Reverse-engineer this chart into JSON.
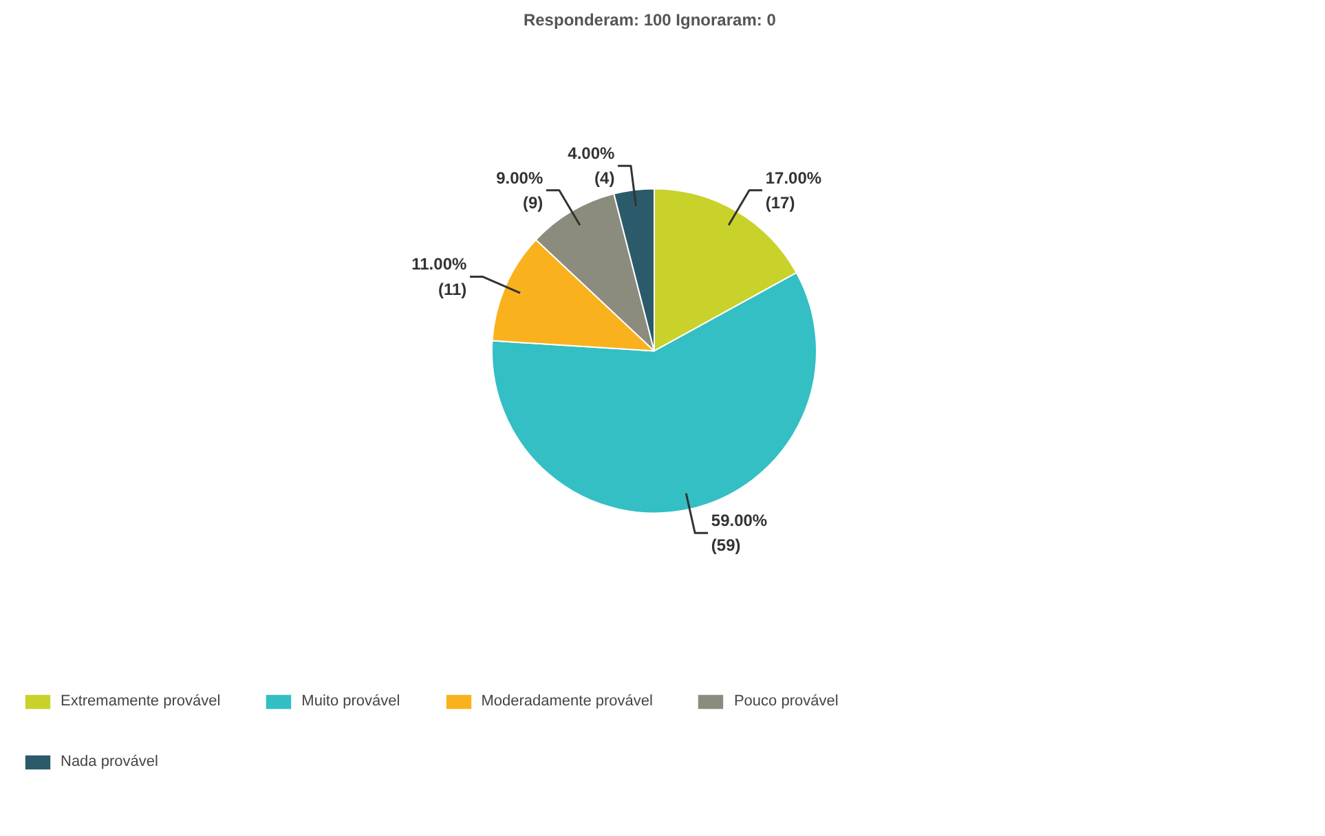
{
  "chart_data": {
    "type": "pie",
    "title": "Responderam: 100   Ignoraram: 0",
    "categories": [
      "Extremamente provável",
      "Muito provável",
      "Moderadamente provável",
      "Pouco provável",
      "Nada provável"
    ],
    "values": [
      17,
      59,
      11,
      9,
      4
    ],
    "colors": [
      "#c8d22a",
      "#33bfc4",
      "#f9b21d",
      "#8c8c7e",
      "#2b5a6b"
    ],
    "value_labels": [
      "17.00%\n(17)",
      "59.00%\n(59)",
      "11.00%\n(11)",
      "9.00%\n(9)",
      "4.00%\n(4)"
    ],
    "legend": "bottom"
  }
}
